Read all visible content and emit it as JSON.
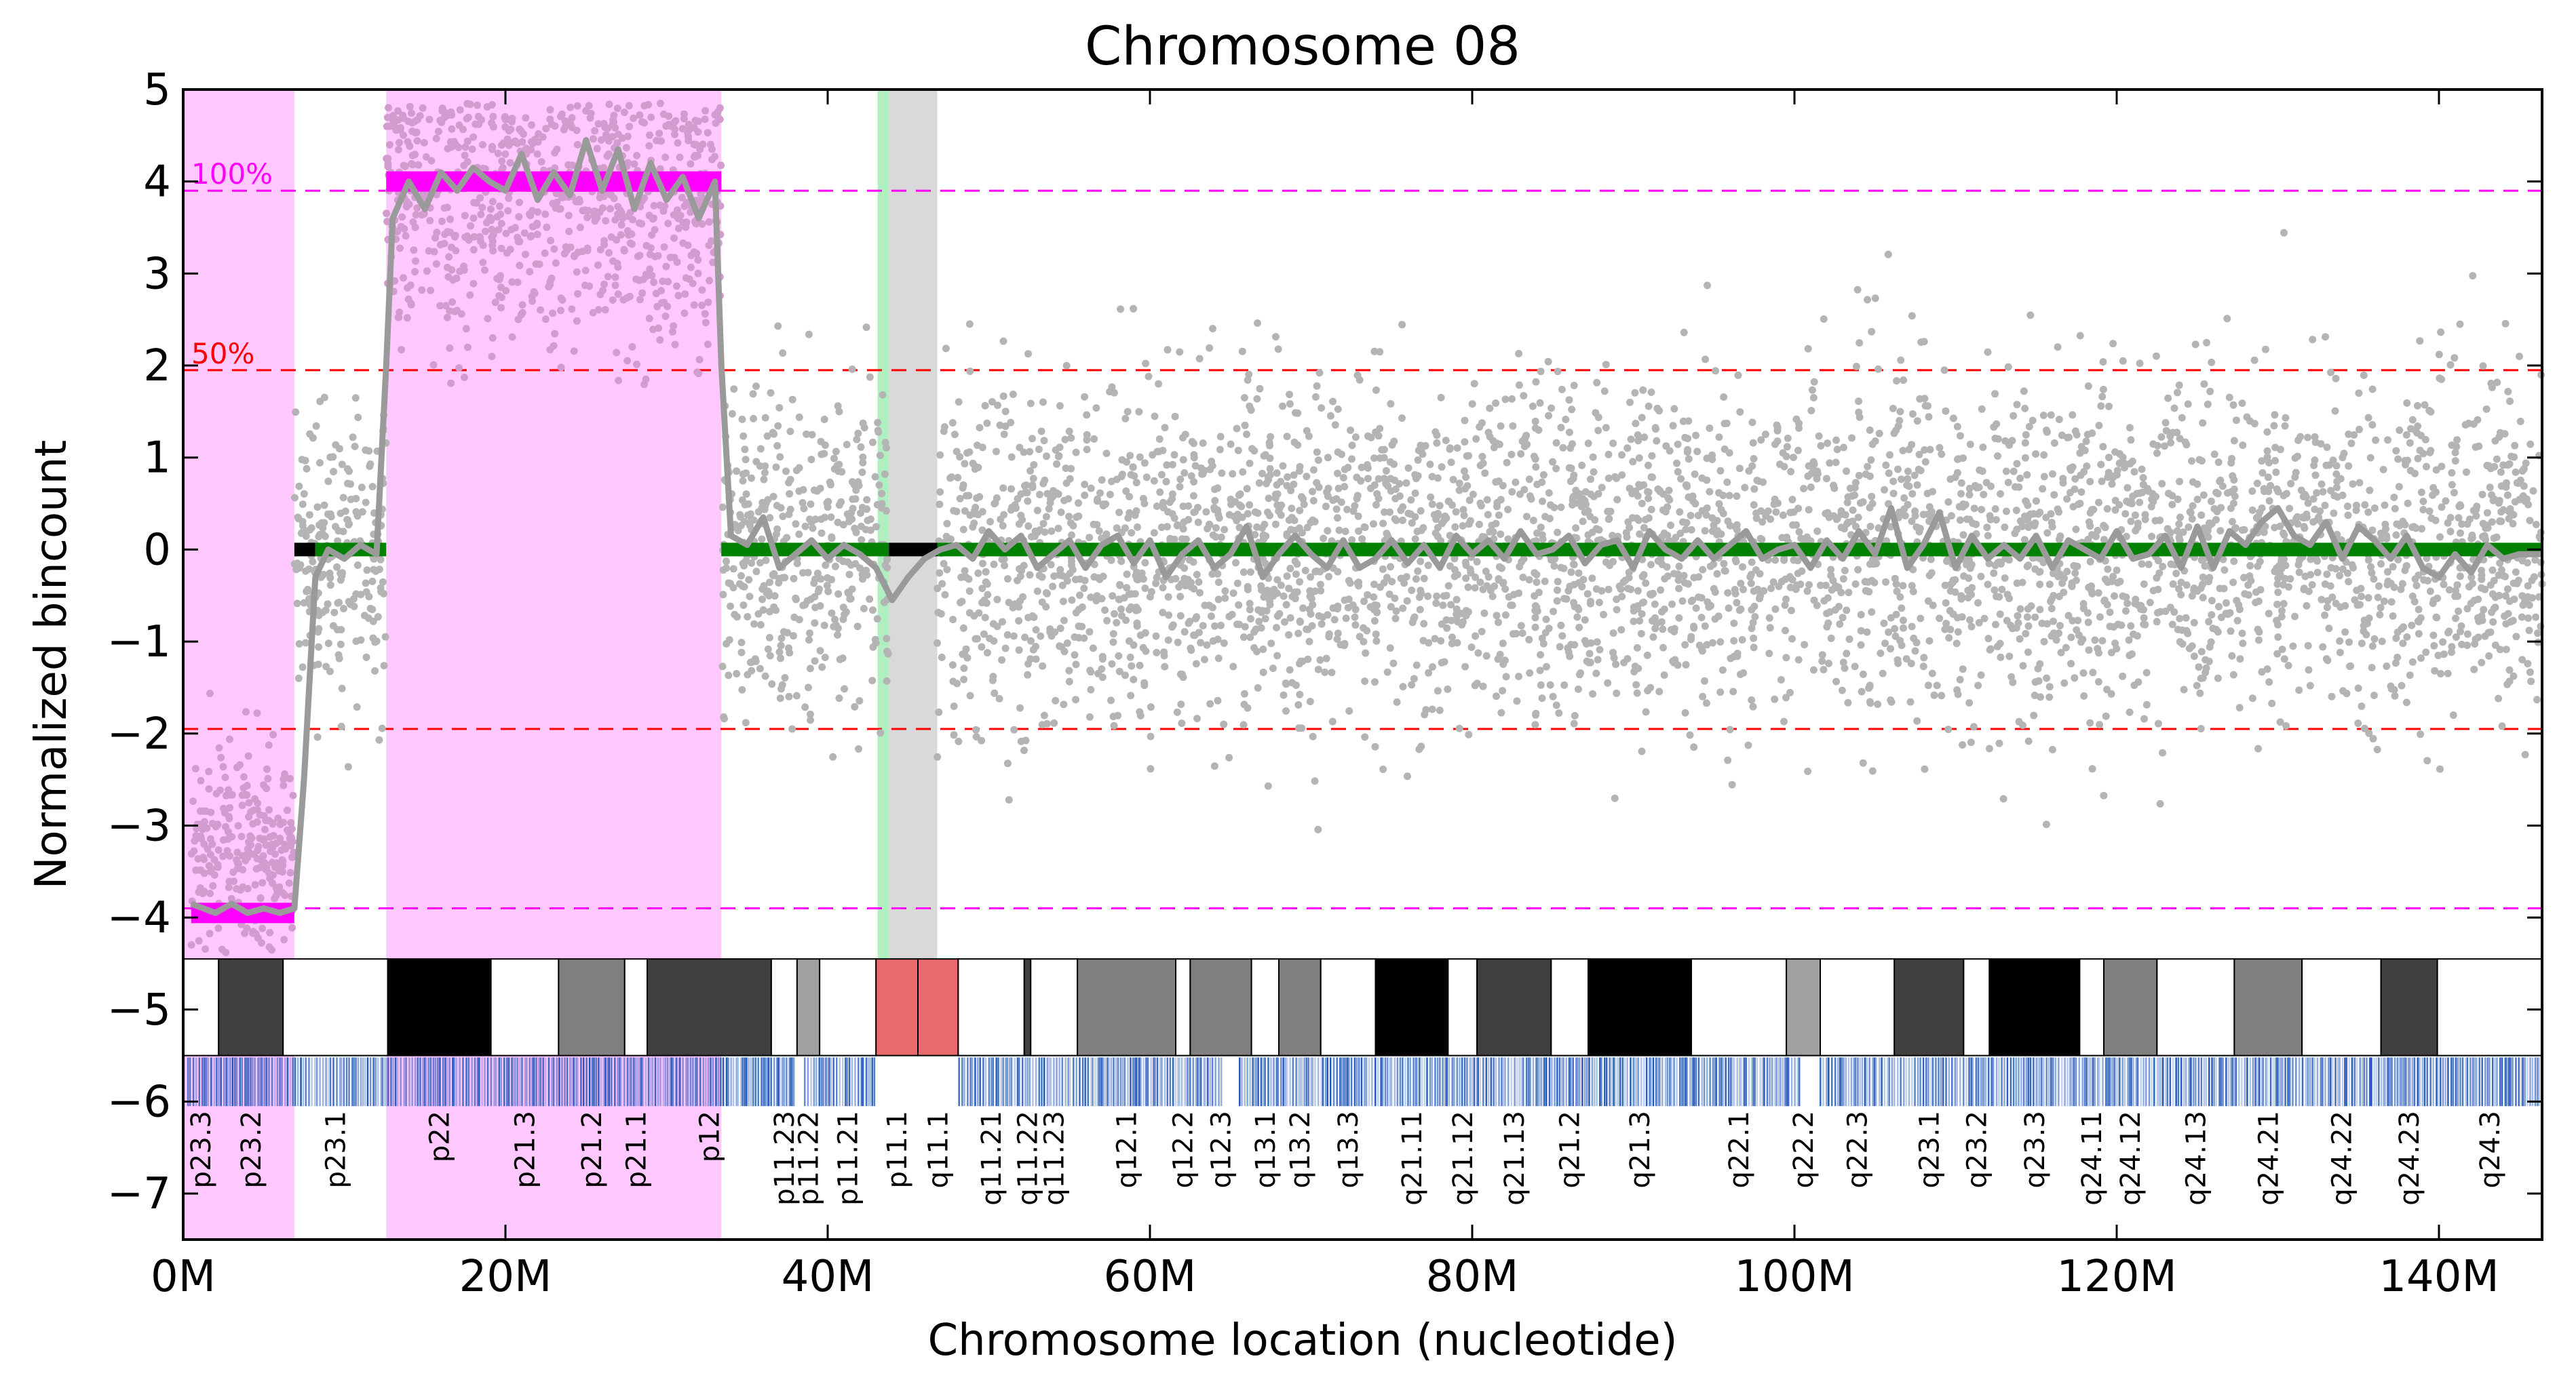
{
  "chart_data": {
    "type": "scatter",
    "title": "Chromosome  08",
    "xlabel": "Chromosome location (nucleotide)",
    "ylabel": "Normalized bincount",
    "xlim": [
      0,
      146.4
    ],
    "ylim": [
      -7.5,
      5
    ],
    "x_unit": "M",
    "x_ticks": [
      {
        "value": 0,
        "label": "0M"
      },
      {
        "value": 20,
        "label": "20M"
      },
      {
        "value": 40,
        "label": "40M"
      },
      {
        "value": 60,
        "label": "60M"
      },
      {
        "value": 80,
        "label": "80M"
      },
      {
        "value": 100,
        "label": "100M"
      },
      {
        "value": 120,
        "label": "120M"
      },
      {
        "value": 140,
        "label": "140M"
      }
    ],
    "y_ticks": [
      {
        "value": 5,
        "label": "5"
      },
      {
        "value": 4,
        "label": "4"
      },
      {
        "value": 3,
        "label": "3"
      },
      {
        "value": 2,
        "label": "2"
      },
      {
        "value": 1,
        "label": "1"
      },
      {
        "value": 0,
        "label": "0"
      },
      {
        "value": -1,
        "label": "−1"
      },
      {
        "value": -2,
        "label": "−2"
      },
      {
        "value": -3,
        "label": "−3"
      },
      {
        "value": -4,
        "label": "−4"
      },
      {
        "value": -5,
        "label": "−5"
      },
      {
        "value": -6,
        "label": "−6"
      },
      {
        "value": -7,
        "label": "−7"
      }
    ],
    "reference_lines": [
      {
        "y": 3.9,
        "color": "#ff00ff",
        "label": "100%"
      },
      {
        "y": 1.95,
        "color": "#ff0000",
        "label": "50%"
      },
      {
        "y": -1.95,
        "color": "#ff0000",
        "label": ""
      },
      {
        "y": -3.9,
        "color": "#ff00ff",
        "label": ""
      }
    ],
    "cnv_regions": [
      {
        "start": 0,
        "end": 6.9,
        "color": "#ffc8ff"
      },
      {
        "start": 12.6,
        "end": 33.4,
        "color": "#ffc8ff"
      }
    ],
    "centromere": {
      "start": 43.8,
      "end": 46.8,
      "color": "#d9d9d9"
    },
    "gap_marker": {
      "start": 43.1,
      "end": 43.8,
      "color": "#b0f0c0"
    },
    "segments": [
      {
        "start": 0.5,
        "end": 6.9,
        "value": -3.95,
        "color": "#ff00ff"
      },
      {
        "start": 6.9,
        "end": 8.2,
        "value": 0,
        "color": "#000000"
      },
      {
        "start": 8.2,
        "end": 12.6,
        "value": 0,
        "color": "#008000"
      },
      {
        "start": 12.6,
        "end": 33.4,
        "value": 4.0,
        "color": "#ff00ff"
      },
      {
        "start": 33.4,
        "end": 43.8,
        "value": 0,
        "color": "#008000"
      },
      {
        "start": 43.8,
        "end": 46.8,
        "value": 0,
        "color": "#000000"
      },
      {
        "start": 46.8,
        "end": 146.4,
        "value": 0,
        "color": "#008000"
      }
    ],
    "smoothed_line": {
      "color": "#9a9a9a",
      "x": [
        0.5,
        2,
        3,
        4,
        5,
        6,
        6.9,
        7.5,
        8.2,
        9,
        10,
        11,
        12,
        12.6,
        13,
        14,
        15,
        16,
        17,
        18,
        19,
        20,
        21,
        22,
        23,
        24,
        25,
        26,
        27,
        28,
        29,
        30,
        31,
        32,
        33,
        33.4,
        34,
        35,
        36,
        37,
        38,
        39,
        40,
        41,
        42,
        43,
        44,
        45,
        46,
        47,
        48,
        49,
        50,
        51,
        52,
        53,
        54,
        55,
        56,
        57,
        58,
        59,
        60,
        61,
        62,
        63,
        64,
        65,
        66,
        67,
        68,
        69,
        70,
        71,
        72,
        73,
        74,
        75,
        76,
        77,
        78,
        79,
        80,
        81,
        82,
        83,
        84,
        85,
        86,
        87,
        88,
        89,
        90,
        91,
        92,
        93,
        94,
        95,
        96,
        97,
        98,
        99,
        100,
        101,
        102,
        103,
        104,
        105,
        106,
        107,
        108,
        109,
        110,
        111,
        112,
        113,
        114,
        115,
        116,
        117,
        118,
        119,
        120,
        121,
        122,
        123,
        124,
        125,
        126,
        127,
        128,
        129,
        130,
        131,
        132,
        133,
        134,
        135,
        136,
        137,
        138,
        139,
        140,
        141,
        142,
        143,
        144,
        145,
        146.4
      ],
      "y": [
        -3.85,
        -3.95,
        -3.85,
        -3.95,
        -3.9,
        -3.95,
        -3.9,
        -2.5,
        -0.3,
        0.0,
        -0.1,
        0.05,
        -0.05,
        2.0,
        3.6,
        4.0,
        3.7,
        4.1,
        3.9,
        4.15,
        4.0,
        3.9,
        4.3,
        3.8,
        4.1,
        3.85,
        4.45,
        3.9,
        4.35,
        3.7,
        4.2,
        3.8,
        4.05,
        3.6,
        4.0,
        2.0,
        0.15,
        0.05,
        0.35,
        -0.2,
        -0.05,
        0.1,
        -0.1,
        0.05,
        -0.05,
        -0.2,
        -0.55,
        -0.3,
        -0.1,
        0.0,
        0.05,
        -0.1,
        0.2,
        0.0,
        0.15,
        -0.2,
        -0.05,
        0.1,
        -0.2,
        0.05,
        0.15,
        -0.15,
        0.1,
        -0.3,
        -0.05,
        0.1,
        -0.2,
        -0.05,
        0.25,
        -0.3,
        -0.05,
        0.15,
        -0.05,
        -0.2,
        0.1,
        -0.2,
        -0.1,
        0.1,
        -0.15,
        0.05,
        -0.2,
        0.15,
        -0.05,
        0.1,
        -0.1,
        0.2,
        -0.05,
        0.0,
        0.15,
        -0.15,
        0.05,
        0.1,
        -0.2,
        0.2,
        0.0,
        -0.1,
        0.1,
        -0.1,
        0.05,
        0.2,
        -0.1,
        0.0,
        0.05,
        -0.2,
        0.1,
        -0.1,
        0.2,
        -0.05,
        0.45,
        -0.2,
        0.05,
        0.4,
        -0.2,
        0.15,
        -0.1,
        0.05,
        -0.1,
        0.15,
        -0.2,
        0.1,
        0.0,
        -0.1,
        0.2,
        -0.1,
        -0.05,
        0.15,
        -0.2,
        0.25,
        -0.2,
        0.2,
        0.05,
        0.3,
        0.45,
        0.15,
        0.05,
        0.3,
        -0.1,
        0.25,
        0.1,
        -0.1,
        0.15,
        -0.2,
        -0.3,
        -0.05,
        -0.25,
        0.05,
        -0.1,
        -0.05,
        -0.05
      ]
    },
    "scatter": {
      "color": "#b4b4b4",
      "highlight_color": "#d39ccf",
      "regions": [
        {
          "start": 0.5,
          "end": 6.9,
          "mean": -3.3,
          "sd": 0.55
        },
        {
          "start": 6.9,
          "end": 12.6,
          "mean": 0.0,
          "sd": 0.7
        },
        {
          "start": 12.6,
          "end": 33.4,
          "mean": 3.8,
          "sd": 0.75
        },
        {
          "start": 33.4,
          "end": 43.8,
          "mean": 0.0,
          "sd": 0.85
        },
        {
          "start": 46.8,
          "end": 146.4,
          "mean": 0.0,
          "sd": 0.9
        }
      ],
      "points_per_unit": 40
    },
    "ideogram_bands": [
      {
        "name": "p23.3",
        "start": 0,
        "end": 2.2,
        "stain": "#ffffff"
      },
      {
        "name": "p23.2",
        "start": 2.2,
        "end": 6.2,
        "stain": "#404040"
      },
      {
        "name": "p23.1",
        "start": 6.2,
        "end": 12.7,
        "stain": "#ffffff"
      },
      {
        "name": "p22",
        "start": 12.7,
        "end": 19.1,
        "stain": "#000000"
      },
      {
        "name": "p21.3",
        "start": 19.1,
        "end": 23.3,
        "stain": "#ffffff"
      },
      {
        "name": "p21.2",
        "start": 23.3,
        "end": 27.4,
        "stain": "#808080"
      },
      {
        "name": "p21.1",
        "start": 27.4,
        "end": 28.8,
        "stain": "#ffffff"
      },
      {
        "name": "p12",
        "start": 28.8,
        "end": 36.5,
        "stain": "#404040"
      },
      {
        "name": "p11.23",
        "start": 36.5,
        "end": 38.1,
        "stain": "#ffffff"
      },
      {
        "name": "p11.22",
        "start": 38.1,
        "end": 39.5,
        "stain": "#a0a0a0"
      },
      {
        "name": "p11.21",
        "start": 39.5,
        "end": 43.0,
        "stain": "#ffffff"
      },
      {
        "name": "p11.1",
        "start": 43.0,
        "end": 45.6,
        "stain": "#e86a6a"
      },
      {
        "name": "q11.1",
        "start": 45.6,
        "end": 48.1,
        "stain": "#e86a6a"
      },
      {
        "name": "q11.21",
        "start": 48.1,
        "end": 52.2,
        "stain": "#ffffff"
      },
      {
        "name": "q11.22",
        "start": 52.2,
        "end": 52.6,
        "stain": "#404040"
      },
      {
        "name": "q11.23",
        "start": 52.6,
        "end": 55.5,
        "stain": "#ffffff"
      },
      {
        "name": "q12.1",
        "start": 55.5,
        "end": 61.6,
        "stain": "#808080"
      },
      {
        "name": "q12.2",
        "start": 61.6,
        "end": 62.5,
        "stain": "#ffffff"
      },
      {
        "name": "q12.3",
        "start": 62.5,
        "end": 66.3,
        "stain": "#808080"
      },
      {
        "name": "q13.1",
        "start": 66.3,
        "end": 68.0,
        "stain": "#ffffff"
      },
      {
        "name": "q13.2",
        "start": 68.0,
        "end": 70.6,
        "stain": "#808080"
      },
      {
        "name": "q13.3",
        "start": 70.6,
        "end": 74.0,
        "stain": "#ffffff"
      },
      {
        "name": "q21.11",
        "start": 74.0,
        "end": 78.5,
        "stain": "#000000"
      },
      {
        "name": "q21.12",
        "start": 78.5,
        "end": 80.3,
        "stain": "#ffffff"
      },
      {
        "name": "q21.13",
        "start": 80.3,
        "end": 84.9,
        "stain": "#404040"
      },
      {
        "name": "q21.2",
        "start": 84.9,
        "end": 87.2,
        "stain": "#ffffff"
      },
      {
        "name": "q21.3",
        "start": 87.2,
        "end": 93.6,
        "stain": "#000000"
      },
      {
        "name": "q22.1",
        "start": 93.6,
        "end": 99.5,
        "stain": "#ffffff"
      },
      {
        "name": "q22.2",
        "start": 99.5,
        "end": 101.6,
        "stain": "#a0a0a0"
      },
      {
        "name": "q22.3",
        "start": 101.6,
        "end": 106.2,
        "stain": "#ffffff"
      },
      {
        "name": "q23.1",
        "start": 106.2,
        "end": 110.5,
        "stain": "#404040"
      },
      {
        "name": "q23.2",
        "start": 110.5,
        "end": 112.1,
        "stain": "#ffffff"
      },
      {
        "name": "q23.3",
        "start": 112.1,
        "end": 117.7,
        "stain": "#000000"
      },
      {
        "name": "q24.11",
        "start": 117.7,
        "end": 119.2,
        "stain": "#ffffff"
      },
      {
        "name": "q24.12",
        "start": 119.2,
        "end": 122.5,
        "stain": "#808080"
      },
      {
        "name": "q24.13",
        "start": 122.5,
        "end": 127.3,
        "stain": "#ffffff"
      },
      {
        "name": "q24.21",
        "start": 127.3,
        "end": 131.5,
        "stain": "#808080"
      },
      {
        "name": "q24.22",
        "start": 131.5,
        "end": 136.4,
        "stain": "#ffffff"
      },
      {
        "name": "q24.23",
        "start": 136.4,
        "end": 139.9,
        "stain": "#404040"
      },
      {
        "name": "q24.3",
        "start": 139.9,
        "end": 146.4,
        "stain": "#ffffff"
      }
    ],
    "mappability_track": {
      "color": "#1f55b8",
      "gaps": [
        [
          43.0,
          48.0
        ],
        [
          38.0,
          38.5
        ],
        [
          64.5,
          65.5
        ],
        [
          100.5,
          101.5
        ]
      ]
    }
  }
}
